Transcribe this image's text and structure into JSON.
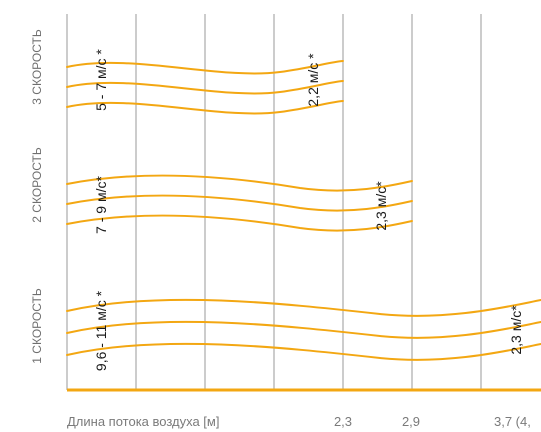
{
  "speeds": [
    {
      "name": "3 СКОРОСТЬ",
      "start_velocity": "5 - 7 м/с *",
      "end_velocity": "2,2 м/с *",
      "throw_m": 2.3
    },
    {
      "name": "2 СКОРОСТЬ",
      "start_velocity": "7 - 9 м/с*",
      "end_velocity": "2,3 м/с*",
      "throw_m": 2.9
    },
    {
      "name": "1 СКОРОСТЬ",
      "start_velocity": "9,6 - 11 м/с *",
      "end_velocity": "2,3 м/с*",
      "throw_m": 3.7
    }
  ],
  "x_axis": {
    "label": "Длина потока воздуха [м]",
    "ticks": [
      "2,3",
      "2,9",
      "3,7 (4,"
    ]
  },
  "colors": {
    "stream": "#f3a712",
    "grid": "#9a9a9a"
  }
}
